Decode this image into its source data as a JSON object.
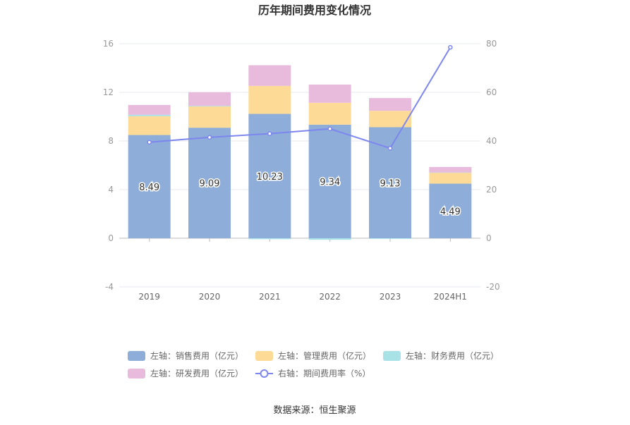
{
  "chart_data": {
    "type": "bar",
    "title": "历年期间费用变化情况",
    "categories": [
      "2019",
      "2020",
      "2021",
      "2022",
      "2023",
      "2024H1"
    ],
    "stacked": true,
    "y_left": {
      "ylim": [
        -4,
        16
      ],
      "ticks": [
        "-4",
        "0",
        "4",
        "8",
        "12",
        "16"
      ]
    },
    "y_right": {
      "ylim": [
        -20,
        80
      ],
      "ticks": [
        "-20",
        "0",
        "20",
        "40",
        "60",
        "80"
      ]
    },
    "series": [
      {
        "name": "左轴：销售费用（亿元）",
        "type": "bar",
        "color": "#8eadd9",
        "values": [
          8.49,
          9.09,
          10.23,
          9.34,
          9.13,
          4.49
        ],
        "labels": [
          "8.49",
          "9.09",
          "10.23",
          "9.34",
          "9.13",
          "4.49"
        ]
      },
      {
        "name": "左轴：管理费用（亿元）",
        "type": "bar",
        "color": "#fddb97",
        "values": [
          1.55,
          1.75,
          2.3,
          1.8,
          1.35,
          0.9
        ]
      },
      {
        "name": "左轴：财务费用（亿元）",
        "type": "bar",
        "color": "#a8e1e6",
        "values": [
          0.12,
          0.05,
          -0.08,
          -0.13,
          -0.05,
          0.02
        ]
      },
      {
        "name": "左轴：研发费用（亿元）",
        "type": "bar",
        "color": "#e8bbdc",
        "values": [
          0.8,
          1.12,
          1.7,
          1.5,
          1.05,
          0.45
        ]
      },
      {
        "name": "右轴：期间费用率（%）",
        "type": "line",
        "color": "#7d86ee",
        "axis": "right",
        "values": [
          39.5,
          41.5,
          43.0,
          45.0,
          37.0,
          78.5
        ]
      }
    ],
    "grid": true,
    "legend_position": "bottom",
    "source": "数据来源：恒生聚源"
  }
}
